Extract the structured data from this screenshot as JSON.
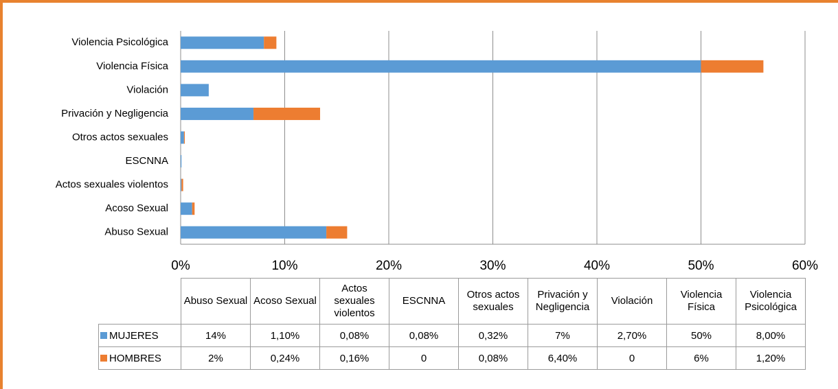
{
  "chart_data": {
    "type": "bar",
    "orientation": "horizontal",
    "stacked": true,
    "categories": [
      "Abuso Sexual",
      "Acoso Sexual",
      "Actos sexuales violentos",
      "ESCNNA",
      "Otros actos sexuales",
      "Privación y Negligencia",
      "Violación",
      "Violencia Física",
      "Violencia Psicológica"
    ],
    "series": [
      {
        "name": "MUJERES",
        "color": "#5b9bd5",
        "values": [
          14,
          1.1,
          0.08,
          0.08,
          0.32,
          7,
          2.7,
          50,
          8
        ],
        "value_labels": [
          "14%",
          "1,10%",
          "0,08%",
          "0,08%",
          "0,32%",
          "7%",
          "2,70%",
          "50%",
          "8,00%"
        ]
      },
      {
        "name": "HOMBRES",
        "color": "#ed7d31",
        "values": [
          2,
          0.24,
          0.16,
          0,
          0.08,
          6.4,
          0,
          6,
          1.2
        ],
        "value_labels": [
          "2%",
          "0,24%",
          "0,16%",
          "0",
          "0,08%",
          "6,40%",
          "0",
          "6%",
          "1,20%"
        ]
      }
    ],
    "xlim": [
      0,
      60
    ],
    "xticks": [
      {
        "value": 0,
        "label": "0%"
      },
      {
        "value": 10,
        "label": "10%"
      },
      {
        "value": 20,
        "label": "20%"
      },
      {
        "value": 30,
        "label": "30%"
      },
      {
        "value": 40,
        "label": "40%"
      },
      {
        "value": 50,
        "label": "50%"
      },
      {
        "value": 60,
        "label": "60%"
      }
    ],
    "grid": true,
    "data_table": true
  }
}
